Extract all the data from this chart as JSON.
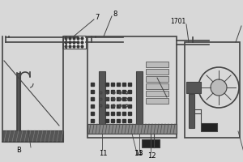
{
  "bg_color": "#d8d8d8",
  "line_color": "#444444",
  "dark_color": "#333333",
  "fill_light": "#bbbbbb",
  "fill_med": "#888888",
  "fill_dark": "#555555",
  "fill_black": "#222222",
  "fill_white": "#eeeeee",
  "fill_stripe": "#999999"
}
